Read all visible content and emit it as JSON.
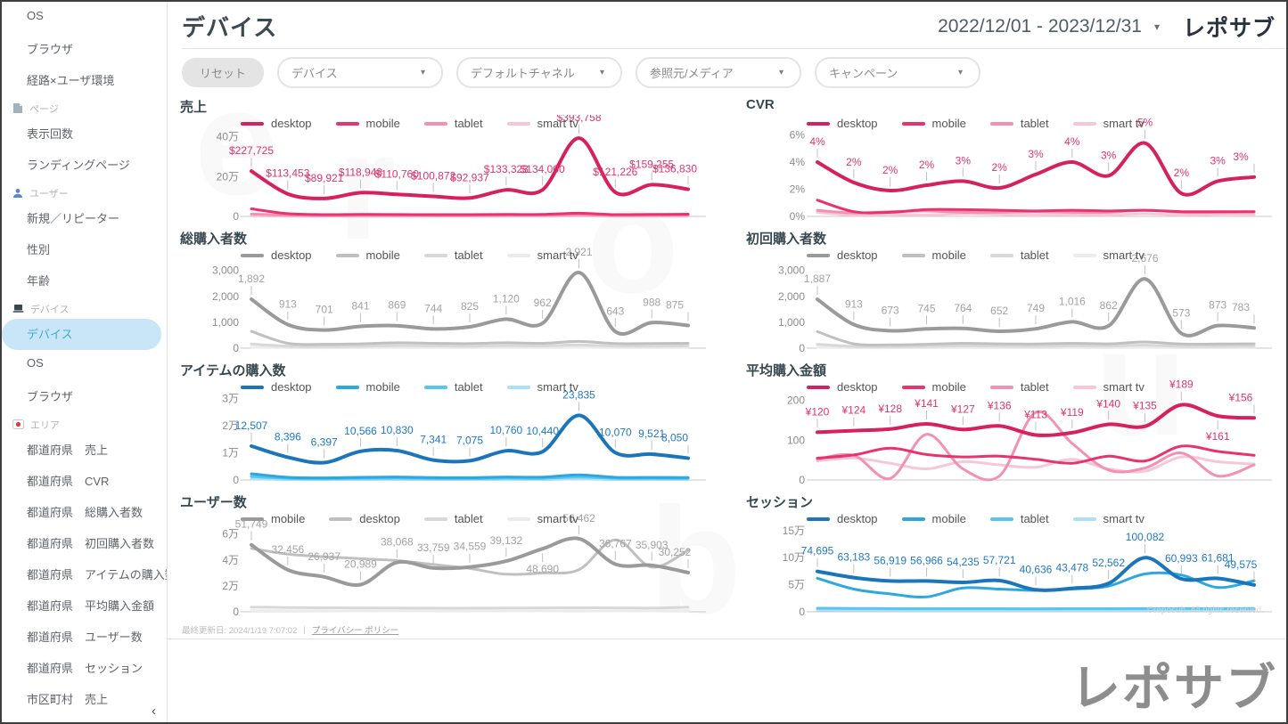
{
  "header": {
    "title": "デバイス",
    "date_range": "2022/12/01 - 2023/12/31",
    "date_caret": "▾",
    "brand": "レポサブ"
  },
  "filters": {
    "reset_label": "リセット",
    "dropdown_caret": "▾",
    "dropdowns": [
      "デバイス",
      "デフォルトチャネル",
      "参照元/メディア",
      "キャンペーン"
    ]
  },
  "sidebar": {
    "collapse_icon": "‹",
    "items": [
      {
        "type": "item",
        "label": "OS"
      },
      {
        "type": "item",
        "label": "ブラウザ"
      },
      {
        "type": "item",
        "label": "経路×ユーザ環境"
      },
      {
        "type": "section",
        "label": "ページ",
        "icon": "page-icon"
      },
      {
        "type": "item",
        "label": "表示回数"
      },
      {
        "type": "item",
        "label": "ランディングページ"
      },
      {
        "type": "section",
        "label": "ユーザー",
        "icon": "user-icon"
      },
      {
        "type": "item",
        "label": "新規／リピーター"
      },
      {
        "type": "item",
        "label": "性別"
      },
      {
        "type": "item",
        "label": "年齢"
      },
      {
        "type": "section",
        "label": "デバイス",
        "icon": "device-icon"
      },
      {
        "type": "item",
        "label": "デバイス",
        "selected": true
      },
      {
        "type": "item",
        "label": "OS"
      },
      {
        "type": "item",
        "label": "ブラウザ"
      },
      {
        "type": "section",
        "label": "エリア",
        "icon": "area-pin-icon"
      },
      {
        "type": "item",
        "label": "都道府県　売上"
      },
      {
        "type": "item",
        "label": "都道府県　CVR"
      },
      {
        "type": "item",
        "label": "都道府県　総購入者数"
      },
      {
        "type": "item",
        "label": "都道府県　初回購入者数"
      },
      {
        "type": "item",
        "label": "都道府県　アイテムの購入数"
      },
      {
        "type": "item",
        "label": "都道府県　平均購入金額"
      },
      {
        "type": "item",
        "label": "都道府県　ユーザー数"
      },
      {
        "type": "item",
        "label": "都道府県　セッション"
      },
      {
        "type": "item",
        "label": "市区町村　売上"
      }
    ]
  },
  "colors": {
    "palettes": {
      "pink": {
        "lines": [
          "#d6205f",
          "#e8336d",
          "#f291b4",
          "#f7c6d7"
        ],
        "label": "#e0336e"
      },
      "gray": {
        "lines": [
          "#9a9a9a",
          "#c0c0c0",
          "#d8d8d8",
          "#ececec"
        ],
        "label": "#a2a2a2"
      },
      "blue": {
        "lines": [
          "#1b75bb",
          "#2da7e0",
          "#56c5f2",
          "#abe0f7"
        ],
        "label": "#1e78c8"
      }
    },
    "selected_item_bg": "#c8e6f8",
    "selected_item_text": "#3fa9dc"
  },
  "chart_data": [
    {
      "type": "line",
      "title": "売上",
      "palette": "pink",
      "ymax": 430000,
      "yticks": [
        {
          "v": 0,
          "label": "0"
        },
        {
          "v": 200000,
          "label": "20万"
        },
        {
          "v": 400000,
          "label": "40万"
        }
      ],
      "label_below": [],
      "series": [
        {
          "name": "desktop",
          "values": [
            227725,
            113453,
            89921,
            118948,
            110760,
            100872,
            92937,
            133323,
            134000,
            393758,
            121226,
            159255,
            136830
          ],
          "labels": [
            "$227,725",
            "$113,453",
            "$89,921",
            "$118,948",
            "$110,760",
            "$100,872",
            "$92,937",
            "$133,323",
            "$134,000",
            "$393,758",
            "$121,226",
            "$159,255",
            "$136,830"
          ]
        },
        {
          "name": "mobile",
          "values": [
            38000,
            14000,
            9000,
            10000,
            9500,
            9000,
            9000,
            10000,
            10000,
            16000,
            9000,
            10000,
            11000
          ]
        },
        {
          "name": "tablet",
          "values": [
            12000,
            6000,
            4000,
            4500,
            4500,
            4000,
            4000,
            5000,
            5000,
            8000,
            4500,
            5000,
            5500
          ]
        },
        {
          "name": "smart tv",
          "values": [
            3000,
            1500,
            1000,
            1200,
            1200,
            1000,
            1000,
            1500,
            1500,
            2500,
            1200,
            1500,
            1500
          ]
        }
      ]
    },
    {
      "type": "line",
      "title": "CVR",
      "palette": "pink",
      "ymax": 6.3,
      "yticks": [
        {
          "v": 0,
          "label": "0%"
        },
        {
          "v": 2,
          "label": "2%"
        },
        {
          "v": 4,
          "label": "4%"
        },
        {
          "v": 6,
          "label": "6%"
        }
      ],
      "label_below": [],
      "series": [
        {
          "name": "desktop",
          "values": [
            4.0,
            2.5,
            1.9,
            2.3,
            2.6,
            2.1,
            3.1,
            4.0,
            3.0,
            5.4,
            1.7,
            2.6,
            2.9
          ],
          "labels": [
            "4%",
            "2%",
            "2%",
            "2%",
            "3%",
            "2%",
            "3%",
            "4%",
            "3%",
            "5%",
            "2%",
            "3%",
            "3%"
          ]
        },
        {
          "name": "mobile",
          "values": [
            1.2,
            0.35,
            0.3,
            0.5,
            0.5,
            0.45,
            0.4,
            0.45,
            0.4,
            0.45,
            0.35,
            0.35,
            0.35
          ]
        },
        {
          "name": "tablet",
          "values": [
            0.45,
            0.25,
            0.35,
            0.4,
            0.3,
            0.3,
            0.35,
            0.3,
            0.3,
            0.45,
            0.3,
            0.3,
            0.35
          ]
        },
        {
          "name": "smart tv",
          "values": [
            0.3,
            0.1,
            0.15,
            0.1,
            0.2,
            0.15,
            0.1,
            0.15,
            0.1,
            0.2,
            0.1,
            0.15,
            0.15
          ]
        }
      ]
    },
    {
      "type": "line",
      "title": "総購入者数",
      "palette": "gray",
      "ymax": 3300,
      "yticks": [
        {
          "v": 0,
          "label": "0"
        },
        {
          "v": 1000,
          "label": "1,000"
        },
        {
          "v": 2000,
          "label": "2,000"
        },
        {
          "v": 3000,
          "label": "3,000"
        }
      ],
      "label_below": [],
      "series": [
        {
          "name": "desktop",
          "values": [
            1892,
            913,
            701,
            841,
            869,
            744,
            825,
            1120,
            962,
            2921,
            643,
            988,
            875
          ],
          "labels": [
            "1,892",
            "913",
            "701",
            "841",
            "869",
            "744",
            "825",
            "1,120",
            "962",
            "2,921",
            "643",
            "988",
            "875"
          ]
        },
        {
          "name": "mobile",
          "values": [
            650,
            190,
            150,
            170,
            210,
            190,
            180,
            210,
            190,
            260,
            180,
            180,
            190
          ]
        },
        {
          "name": "tablet",
          "values": [
            160,
            80,
            60,
            80,
            100,
            90,
            80,
            100,
            90,
            130,
            80,
            80,
            90
          ]
        },
        {
          "name": "smart tv",
          "values": [
            40,
            20,
            15,
            20,
            25,
            20,
            20,
            25,
            20,
            35,
            20,
            20,
            25
          ]
        }
      ]
    },
    {
      "type": "line",
      "title": "初回購入者数",
      "palette": "gray",
      "ymax": 3300,
      "yticks": [
        {
          "v": 0,
          "label": "0"
        },
        {
          "v": 1000,
          "label": "1,000"
        },
        {
          "v": 2000,
          "label": "2,000"
        },
        {
          "v": 3000,
          "label": "3,000"
        }
      ],
      "label_below": [],
      "series": [
        {
          "name": "desktop",
          "values": [
            1887,
            913,
            673,
            745,
            764,
            652,
            749,
            1016,
            862,
            2676,
            573,
            873,
            783
          ],
          "labels": [
            "1,887",
            "913",
            "673",
            "745",
            "764",
            "652",
            "749",
            "1,016",
            "862",
            "2,676",
            "573",
            "873",
            "783"
          ]
        },
        {
          "name": "mobile",
          "values": [
            640,
            170,
            130,
            150,
            190,
            170,
            160,
            190,
            170,
            240,
            160,
            160,
            170
          ]
        },
        {
          "name": "tablet",
          "values": [
            150,
            70,
            55,
            70,
            90,
            80,
            70,
            90,
            80,
            120,
            70,
            70,
            80
          ]
        },
        {
          "name": "smart tv",
          "values": [
            35,
            18,
            13,
            18,
            22,
            18,
            18,
            22,
            18,
            30,
            18,
            18,
            22
          ]
        }
      ]
    },
    {
      "type": "line",
      "title": "アイテムの購入数",
      "palette": "blue",
      "ymax": 31500,
      "yticks": [
        {
          "v": 0,
          "label": "0"
        },
        {
          "v": 10000,
          "label": "1万"
        },
        {
          "v": 20000,
          "label": "2万"
        },
        {
          "v": 30000,
          "label": "3万"
        }
      ],
      "label_below": [],
      "series": [
        {
          "name": "desktop",
          "values": [
            12507,
            8396,
            6397,
            10566,
            10830,
            7341,
            7075,
            10760,
            10440,
            23835,
            10070,
            9521,
            8050
          ],
          "labels": [
            "12,507",
            "8,396",
            "6,397",
            "10,566",
            "10,830",
            "7,341",
            "7,075",
            "10,760",
            "10,440",
            "23,835",
            "10,070",
            "9,521",
            "8,050"
          ]
        },
        {
          "name": "mobile",
          "values": [
            2300,
            1000,
            800,
            1000,
            1100,
            900,
            850,
            1100,
            1050,
            1900,
            1000,
            950,
            900
          ]
        },
        {
          "name": "tablet",
          "values": [
            1300,
            600,
            450,
            600,
            650,
            500,
            480,
            650,
            600,
            1100,
            580,
            550,
            520
          ]
        },
        {
          "name": "smart tv",
          "values": [
            400,
            180,
            140,
            180,
            200,
            160,
            150,
            200,
            180,
            350,
            180,
            170,
            160
          ]
        }
      ]
    },
    {
      "type": "line",
      "title": "平均購入金額",
      "palette": "pink",
      "ymax": 215,
      "yticks": [
        {
          "v": 0,
          "label": "0"
        },
        {
          "v": 100,
          "label": "100"
        },
        {
          "v": 200,
          "label": "200"
        }
      ],
      "label_below": [
        11
      ],
      "series": [
        {
          "name": "desktop",
          "values": [
            120,
            124,
            128,
            141,
            127,
            136,
            113,
            119,
            140,
            135,
            189,
            161,
            156
          ],
          "labels": [
            "¥120",
            "¥124",
            "¥128",
            "¥141",
            "¥127",
            "¥136",
            "¥113",
            "¥119",
            "¥140",
            "¥135",
            "¥189",
            "¥161",
            "¥156"
          ]
        },
        {
          "name": "mobile",
          "values": [
            55,
            63,
            80,
            64,
            58,
            60,
            52,
            42,
            60,
            48,
            85,
            72,
            62
          ]
        },
        {
          "name": "tablet",
          "values": [
            52,
            62,
            4,
            115,
            28,
            10,
            170,
            92,
            25,
            30,
            68,
            10,
            38
          ]
        },
        {
          "name": "smart tv",
          "values": [
            48,
            55,
            42,
            28,
            46,
            38,
            32,
            52,
            28,
            22,
            58,
            46,
            40
          ]
        }
      ]
    },
    {
      "type": "line",
      "title": "ユーザー数",
      "palette": "gray",
      "ymax": 66000,
      "yticks": [
        {
          "v": 0,
          "label": "0"
        },
        {
          "v": 20000,
          "label": "2万"
        },
        {
          "v": 40000,
          "label": "4万"
        },
        {
          "v": 60000,
          "label": "6万"
        }
      ],
      "label_below": [
        8
      ],
      "series": [
        {
          "name": "mobile",
          "values": [
            51749,
            32456,
            26937,
            20989,
            38068,
            33759,
            34559,
            39132,
            48690,
            56462,
            36767,
            35903,
            30252
          ],
          "labels": [
            "51,749",
            "32,456",
            "26,937",
            "20,989",
            "38,068",
            "33,759",
            "34,559",
            "39,132",
            "48,690",
            "56,462",
            "36,767",
            "35,903",
            "30,252"
          ]
        },
        {
          "name": "desktop",
          "values": [
            49000,
            44500,
            42500,
            41000,
            39500,
            36500,
            33500,
            29000,
            30000,
            32500,
            55500,
            34500,
            47500
          ]
        },
        {
          "name": "tablet",
          "values": [
            3600,
            3300,
            3100,
            3000,
            2900,
            2800,
            2800,
            2900,
            3000,
            3100,
            3000,
            2900,
            3500
          ]
        },
        {
          "name": "smart tv",
          "values": [
            900,
            800,
            750,
            700,
            700,
            650,
            650,
            700,
            700,
            750,
            700,
            700,
            800
          ]
        }
      ]
    },
    {
      "type": "line",
      "title": "セッション",
      "palette": "blue",
      "ymax": 158000,
      "yticks": [
        {
          "v": 0,
          "label": "0"
        },
        {
          "v": 50000,
          "label": "5万"
        },
        {
          "v": 100000,
          "label": "10万"
        },
        {
          "v": 150000,
          "label": "15万"
        }
      ],
      "label_below": [],
      "series": [
        {
          "name": "desktop",
          "values": [
            74695,
            63183,
            56919,
            56966,
            54235,
            57721,
            40636,
            43478,
            52562,
            100082,
            60993,
            61681,
            49575
          ],
          "labels": [
            "74,695",
            "63,183",
            "56,919",
            "56,966",
            "54,235",
            "57,721",
            "40,636",
            "43,478",
            "52,562",
            "100,082",
            "60,993",
            "61,681",
            "49,575"
          ]
        },
        {
          "name": "mobile",
          "values": [
            62000,
            42000,
            33000,
            27500,
            44000,
            42000,
            39500,
            42000,
            47500,
            70000,
            68000,
            45000,
            57500
          ]
        },
        {
          "name": "tablet",
          "values": [
            6500,
            6200,
            6000,
            5800,
            5800,
            5700,
            5600,
            5700,
            5800,
            6000,
            6000,
            5900,
            6200
          ]
        },
        {
          "name": "smart tv",
          "values": [
            3200,
            3000,
            2800,
            2700,
            2700,
            2600,
            2600,
            2700,
            2700,
            2900,
            2800,
            2800,
            3000
          ]
        }
      ]
    }
  ],
  "footer": {
    "last_updated": "最終更新日: 2024/1/19 7:07:02",
    "separator": "|",
    "privacy_label": "プライバシー ポリシー",
    "copyright": "©reposub. All rights reserved.",
    "brand": "レポサブ"
  },
  "watermark_letters": [
    "e",
    "r",
    "o",
    "s",
    "u",
    "b"
  ]
}
